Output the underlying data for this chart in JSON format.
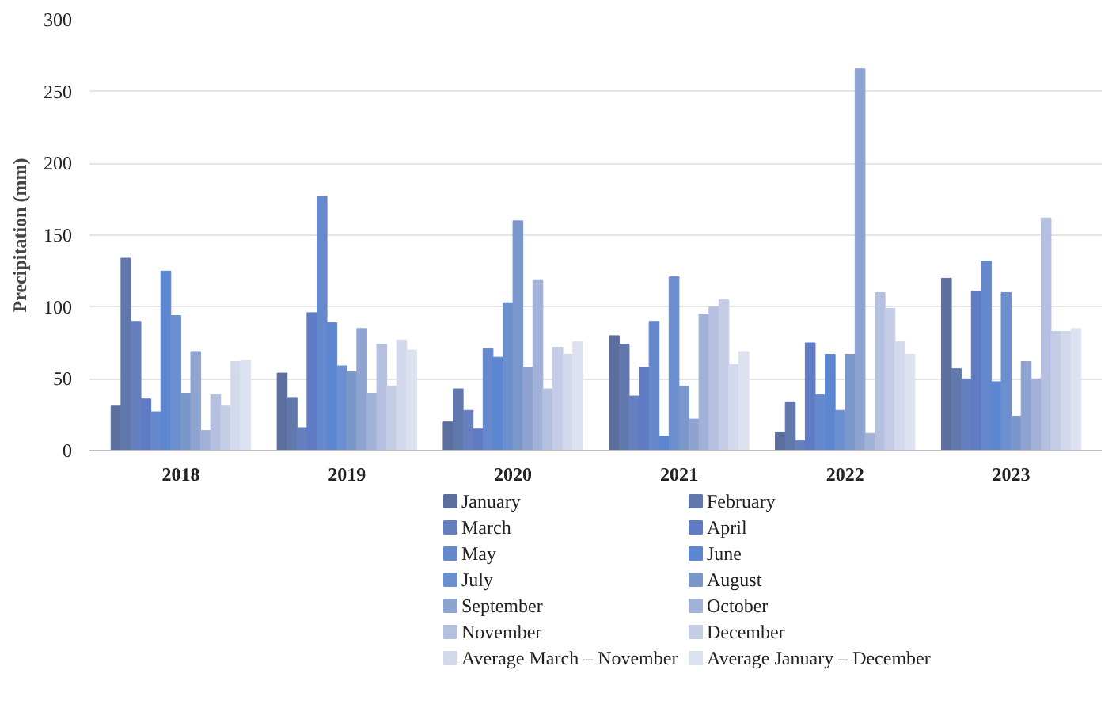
{
  "chart_data": {
    "type": "bar",
    "ylabel": "Precipitation (mm)",
    "categories": [
      "2018",
      "2019",
      "2020",
      "2021",
      "2022",
      "2023"
    ],
    "ylim": [
      0,
      300
    ],
    "yticks": [
      0,
      50,
      100,
      150,
      200,
      250,
      300
    ],
    "grid": "y",
    "legend": "bottom",
    "series": [
      {
        "name": "January",
        "color": "#5b6e9e",
        "values": [
          31,
          54,
          20,
          80,
          13,
          120
        ]
      },
      {
        "name": "February",
        "color": "#6178ad",
        "values": [
          134,
          37,
          43,
          74,
          34,
          57
        ]
      },
      {
        "name": "March",
        "color": "#6680bf",
        "values": [
          90,
          16,
          28,
          38,
          7,
          50
        ]
      },
      {
        "name": "April",
        "color": "#5f7bc4",
        "values": [
          36,
          96,
          15,
          58,
          75,
          111
        ]
      },
      {
        "name": "May",
        "color": "#6688cc",
        "values": [
          27,
          177,
          71,
          90,
          39,
          132
        ]
      },
      {
        "name": "June",
        "color": "#5d86d0",
        "values": [
          125,
          89,
          65,
          10,
          67,
          48
        ]
      },
      {
        "name": "July",
        "color": "#6c8fd0",
        "values": [
          94,
          59,
          103,
          121,
          28,
          110
        ]
      },
      {
        "name": "August",
        "color": "#7a97cc",
        "values": [
          40,
          55,
          160,
          45,
          67,
          24
        ]
      },
      {
        "name": "September",
        "color": "#8fa3d0",
        "values": [
          69,
          85,
          58,
          22,
          266,
          62
        ]
      },
      {
        "name": "October",
        "color": "#a2b1d8",
        "values": [
          14,
          40,
          119,
          95,
          12,
          50
        ]
      },
      {
        "name": "November",
        "color": "#b5c0e0",
        "values": [
          39,
          74,
          43,
          100,
          110,
          162
        ]
      },
      {
        "name": "December",
        "color": "#c5cde6",
        "values": [
          31,
          45,
          72,
          105,
          99,
          83
        ]
      },
      {
        "name": "Average  March – November",
        "color": "#d3d9ec",
        "values": [
          62,
          77,
          67,
          60,
          76,
          83
        ]
      },
      {
        "name": "Average January – December",
        "color": "#dde2f1",
        "values": [
          63,
          70,
          76,
          69,
          67,
          85
        ]
      }
    ]
  }
}
